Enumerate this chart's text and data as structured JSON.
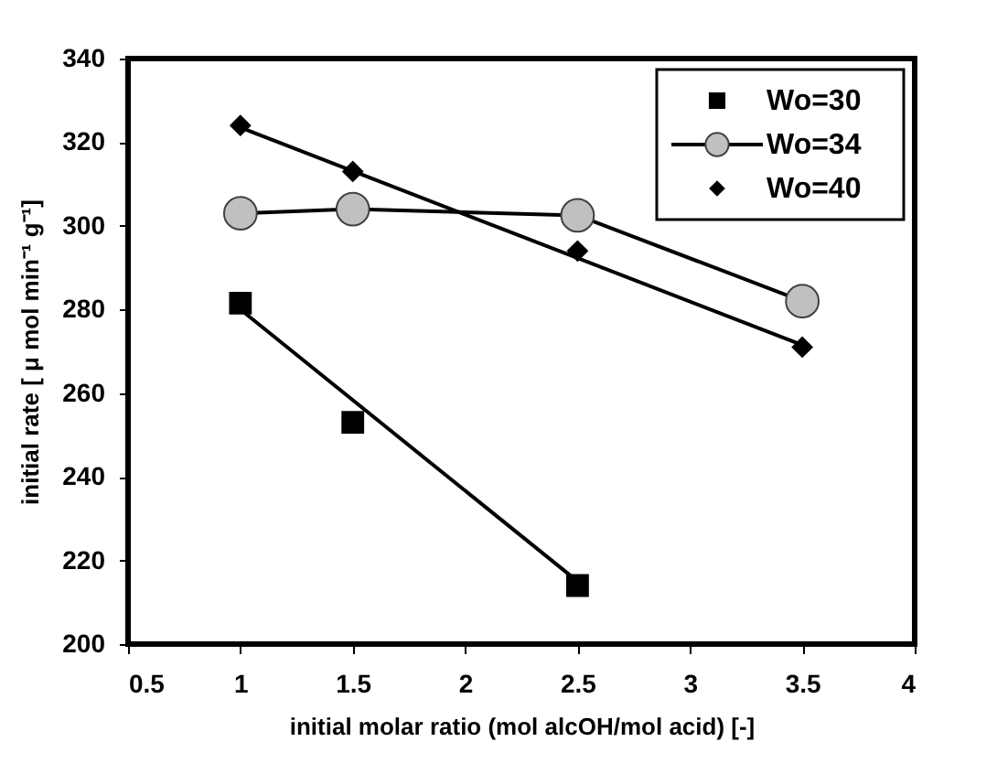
{
  "chart_data": {
    "type": "scatter",
    "xlabel": "initial molar ratio (mol alcOH/mol acid) [-]",
    "ylabel": "initial rate  [ μ mol min⁻¹ g⁻¹]",
    "xlim": [
      0.5,
      4
    ],
    "xticks": [
      0.5,
      1,
      1.5,
      2,
      2.5,
      3,
      3.5,
      4
    ],
    "ylim": [
      200,
      340
    ],
    "yticks": [
      200,
      220,
      240,
      260,
      280,
      300,
      320,
      340
    ],
    "grid": false,
    "legend": "top right",
    "series": [
      {
        "name": "Wo=30",
        "marker": "square",
        "color": "#000000",
        "x": [
          1,
          1.5,
          2.5
        ],
        "values": [
          281.5,
          253,
          214
        ]
      },
      {
        "type": "line",
        "marker": "none",
        "color": "#000000",
        "x": [
          1,
          2.5
        ],
        "values": [
          280,
          215
        ]
      },
      {
        "name": "Wo=34",
        "type": "line",
        "marker": "circle",
        "color": "#c0c0c0",
        "x": [
          1,
          1.5,
          2.5,
          3.5
        ],
        "values": [
          303,
          304,
          302.5,
          282
        ]
      },
      {
        "name": "Wo=40",
        "marker": "diamond",
        "color": "#000000",
        "x": [
          1,
          1.5,
          2.5,
          3.5
        ],
        "values": [
          324,
          313,
          294,
          271
        ]
      },
      {
        "type": "line",
        "marker": "none",
        "color": "#000000",
        "x": [
          1,
          3.5
        ],
        "values": [
          323.5,
          271.5
        ]
      }
    ]
  }
}
